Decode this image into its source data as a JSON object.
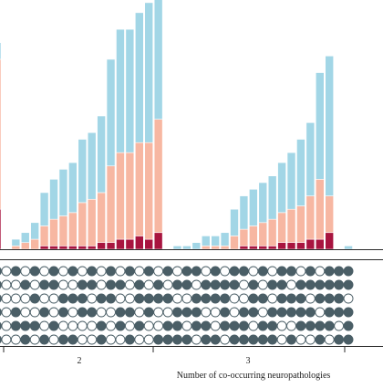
{
  "chart_data": {
    "type": "bar",
    "stacked": true,
    "xlabel": "Number of co-occurring neuropathologies",
    "group_labels": [
      "2",
      "3"
    ],
    "series_colors": {
      "bottom": "#a8143f",
      "middle": "#f7b7a2",
      "top": "#a2d6e6"
    },
    "dot_colors": {
      "filled": "#4a5e66",
      "empty": "#ffffff"
    },
    "matrix_rows": 6,
    "bars": [
      {
        "top": 0.5,
        "middle": 4.5,
        "bottom": 1.2,
        "group": "1"
      },
      {
        "top": 0.0,
        "middle": 0.0,
        "bottom": 0.0,
        "group": "2"
      },
      {
        "top": 0.2,
        "middle": 0.1,
        "bottom": 0.0,
        "group": "2"
      },
      {
        "top": 0.3,
        "middle": 0.2,
        "bottom": 0.0,
        "group": "2"
      },
      {
        "top": 0.5,
        "middle": 0.3,
        "bottom": 0.0,
        "group": "2"
      },
      {
        "top": 1.0,
        "middle": 0.6,
        "bottom": 0.1,
        "group": "2"
      },
      {
        "top": 1.2,
        "middle": 0.8,
        "bottom": 0.1,
        "group": "2"
      },
      {
        "top": 1.4,
        "middle": 0.9,
        "bottom": 0.1,
        "group": "2"
      },
      {
        "top": 1.5,
        "middle": 1.0,
        "bottom": 0.1,
        "group": "2"
      },
      {
        "top": 1.9,
        "middle": 1.3,
        "bottom": 0.1,
        "group": "2"
      },
      {
        "top": 2.0,
        "middle": 1.4,
        "bottom": 0.1,
        "group": "2"
      },
      {
        "top": 2.3,
        "middle": 1.5,
        "bottom": 0.2,
        "group": "2"
      },
      {
        "top": 3.2,
        "middle": 2.3,
        "bottom": 0.2,
        "group": "2"
      },
      {
        "top": 3.7,
        "middle": 2.6,
        "bottom": 0.3,
        "group": "2"
      },
      {
        "top": 3.7,
        "middle": 2.6,
        "bottom": 0.3,
        "group": "2"
      },
      {
        "top": 3.9,
        "middle": 2.8,
        "bottom": 0.4,
        "group": "2"
      },
      {
        "top": 4.2,
        "middle": 2.9,
        "bottom": 0.3,
        "group": "2"
      },
      {
        "top": 4.8,
        "middle": 3.4,
        "bottom": 0.5,
        "group": "2"
      },
      {
        "top": 0.0,
        "middle": 0.0,
        "bottom": 0.0,
        "group": "3"
      },
      {
        "top": 0.1,
        "middle": 0.0,
        "bottom": 0.0,
        "group": "3"
      },
      {
        "top": 0.1,
        "middle": 0.0,
        "bottom": 0.0,
        "group": "3"
      },
      {
        "top": 0.2,
        "middle": 0.0,
        "bottom": 0.0,
        "group": "3"
      },
      {
        "top": 0.3,
        "middle": 0.1,
        "bottom": 0.0,
        "group": "3"
      },
      {
        "top": 0.3,
        "middle": 0.1,
        "bottom": 0.0,
        "group": "3"
      },
      {
        "top": 0.4,
        "middle": 0.1,
        "bottom": 0.0,
        "group": "3"
      },
      {
        "top": 0.8,
        "middle": 0.4,
        "bottom": 0.0,
        "group": "3"
      },
      {
        "top": 1.0,
        "middle": 0.5,
        "bottom": 0.1,
        "group": "3"
      },
      {
        "top": 1.1,
        "middle": 0.6,
        "bottom": 0.1,
        "group": "3"
      },
      {
        "top": 1.2,
        "middle": 0.7,
        "bottom": 0.1,
        "group": "3"
      },
      {
        "top": 1.3,
        "middle": 0.8,
        "bottom": 0.1,
        "group": "3"
      },
      {
        "top": 1.5,
        "middle": 0.9,
        "bottom": 0.2,
        "group": "3"
      },
      {
        "top": 1.7,
        "middle": 1.0,
        "bottom": 0.2,
        "group": "3"
      },
      {
        "top": 2.0,
        "middle": 1.1,
        "bottom": 0.2,
        "group": "3"
      },
      {
        "top": 2.2,
        "middle": 1.3,
        "bottom": 0.3,
        "group": "3"
      },
      {
        "top": 3.2,
        "middle": 1.8,
        "bottom": 0.3,
        "group": "3"
      },
      {
        "top": 4.2,
        "middle": 1.1,
        "bottom": 0.5,
        "group": "3"
      },
      {
        "top": 0.0,
        "middle": 0.0,
        "bottom": 0.0,
        "group": "4"
      },
      {
        "top": 0.1,
        "middle": 0.0,
        "bottom": 0.0,
        "group": "4"
      }
    ],
    "matrix": [
      [
        1,
        1,
        1,
        1,
        1,
        1
      ],
      [
        0,
        0,
        0,
        0,
        0,
        0
      ],
      [
        1,
        0,
        0,
        1,
        1,
        0
      ],
      [
        0,
        1,
        0,
        0,
        1,
        1
      ],
      [
        1,
        0,
        1,
        0,
        1,
        0
      ],
      [
        0,
        1,
        0,
        1,
        0,
        1
      ],
      [
        1,
        1,
        0,
        0,
        1,
        0
      ],
      [
        0,
        0,
        1,
        1,
        0,
        1
      ],
      [
        1,
        0,
        1,
        0,
        0,
        1
      ],
      [
        0,
        1,
        1,
        1,
        0,
        0
      ],
      [
        1,
        1,
        0,
        1,
        0,
        0
      ],
      [
        0,
        0,
        1,
        0,
        1,
        1
      ],
      [
        1,
        1,
        1,
        0,
        0,
        0
      ],
      [
        0,
        1,
        0,
        1,
        1,
        0
      ],
      [
        1,
        0,
        0,
        1,
        0,
        1
      ],
      [
        0,
        1,
        1,
        0,
        1,
        0
      ],
      [
        1,
        0,
        1,
        1,
        0,
        0
      ],
      [
        0,
        1,
        1,
        0,
        0,
        1
      ],
      [
        1,
        0,
        1,
        0,
        1,
        1
      ],
      [
        0,
        1,
        0,
        1,
        1,
        1
      ],
      [
        1,
        1,
        0,
        1,
        0,
        1
      ],
      [
        1,
        0,
        1,
        1,
        1,
        0
      ],
      [
        0,
        1,
        1,
        0,
        1,
        1
      ],
      [
        1,
        1,
        1,
        0,
        0,
        1
      ],
      [
        0,
        1,
        1,
        1,
        1,
        0
      ],
      [
        1,
        1,
        0,
        0,
        1,
        1
      ],
      [
        1,
        0,
        0,
        1,
        1,
        1
      ],
      [
        0,
        1,
        1,
        1,
        0,
        1
      ],
      [
        1,
        0,
        1,
        0,
        1,
        1
      ],
      [
        0,
        1,
        0,
        1,
        1,
        1
      ],
      [
        1,
        1,
        1,
        1,
        0,
        0
      ],
      [
        1,
        0,
        1,
        1,
        0,
        1
      ],
      [
        0,
        1,
        1,
        1,
        1,
        0
      ],
      [
        1,
        1,
        0,
        1,
        1,
        0
      ],
      [
        0,
        1,
        1,
        0,
        1,
        1
      ],
      [
        1,
        1,
        1,
        1,
        1,
        0
      ],
      [
        1,
        1,
        1,
        1,
        0,
        1
      ],
      [
        1,
        1,
        0,
        1,
        1,
        1
      ]
    ]
  }
}
